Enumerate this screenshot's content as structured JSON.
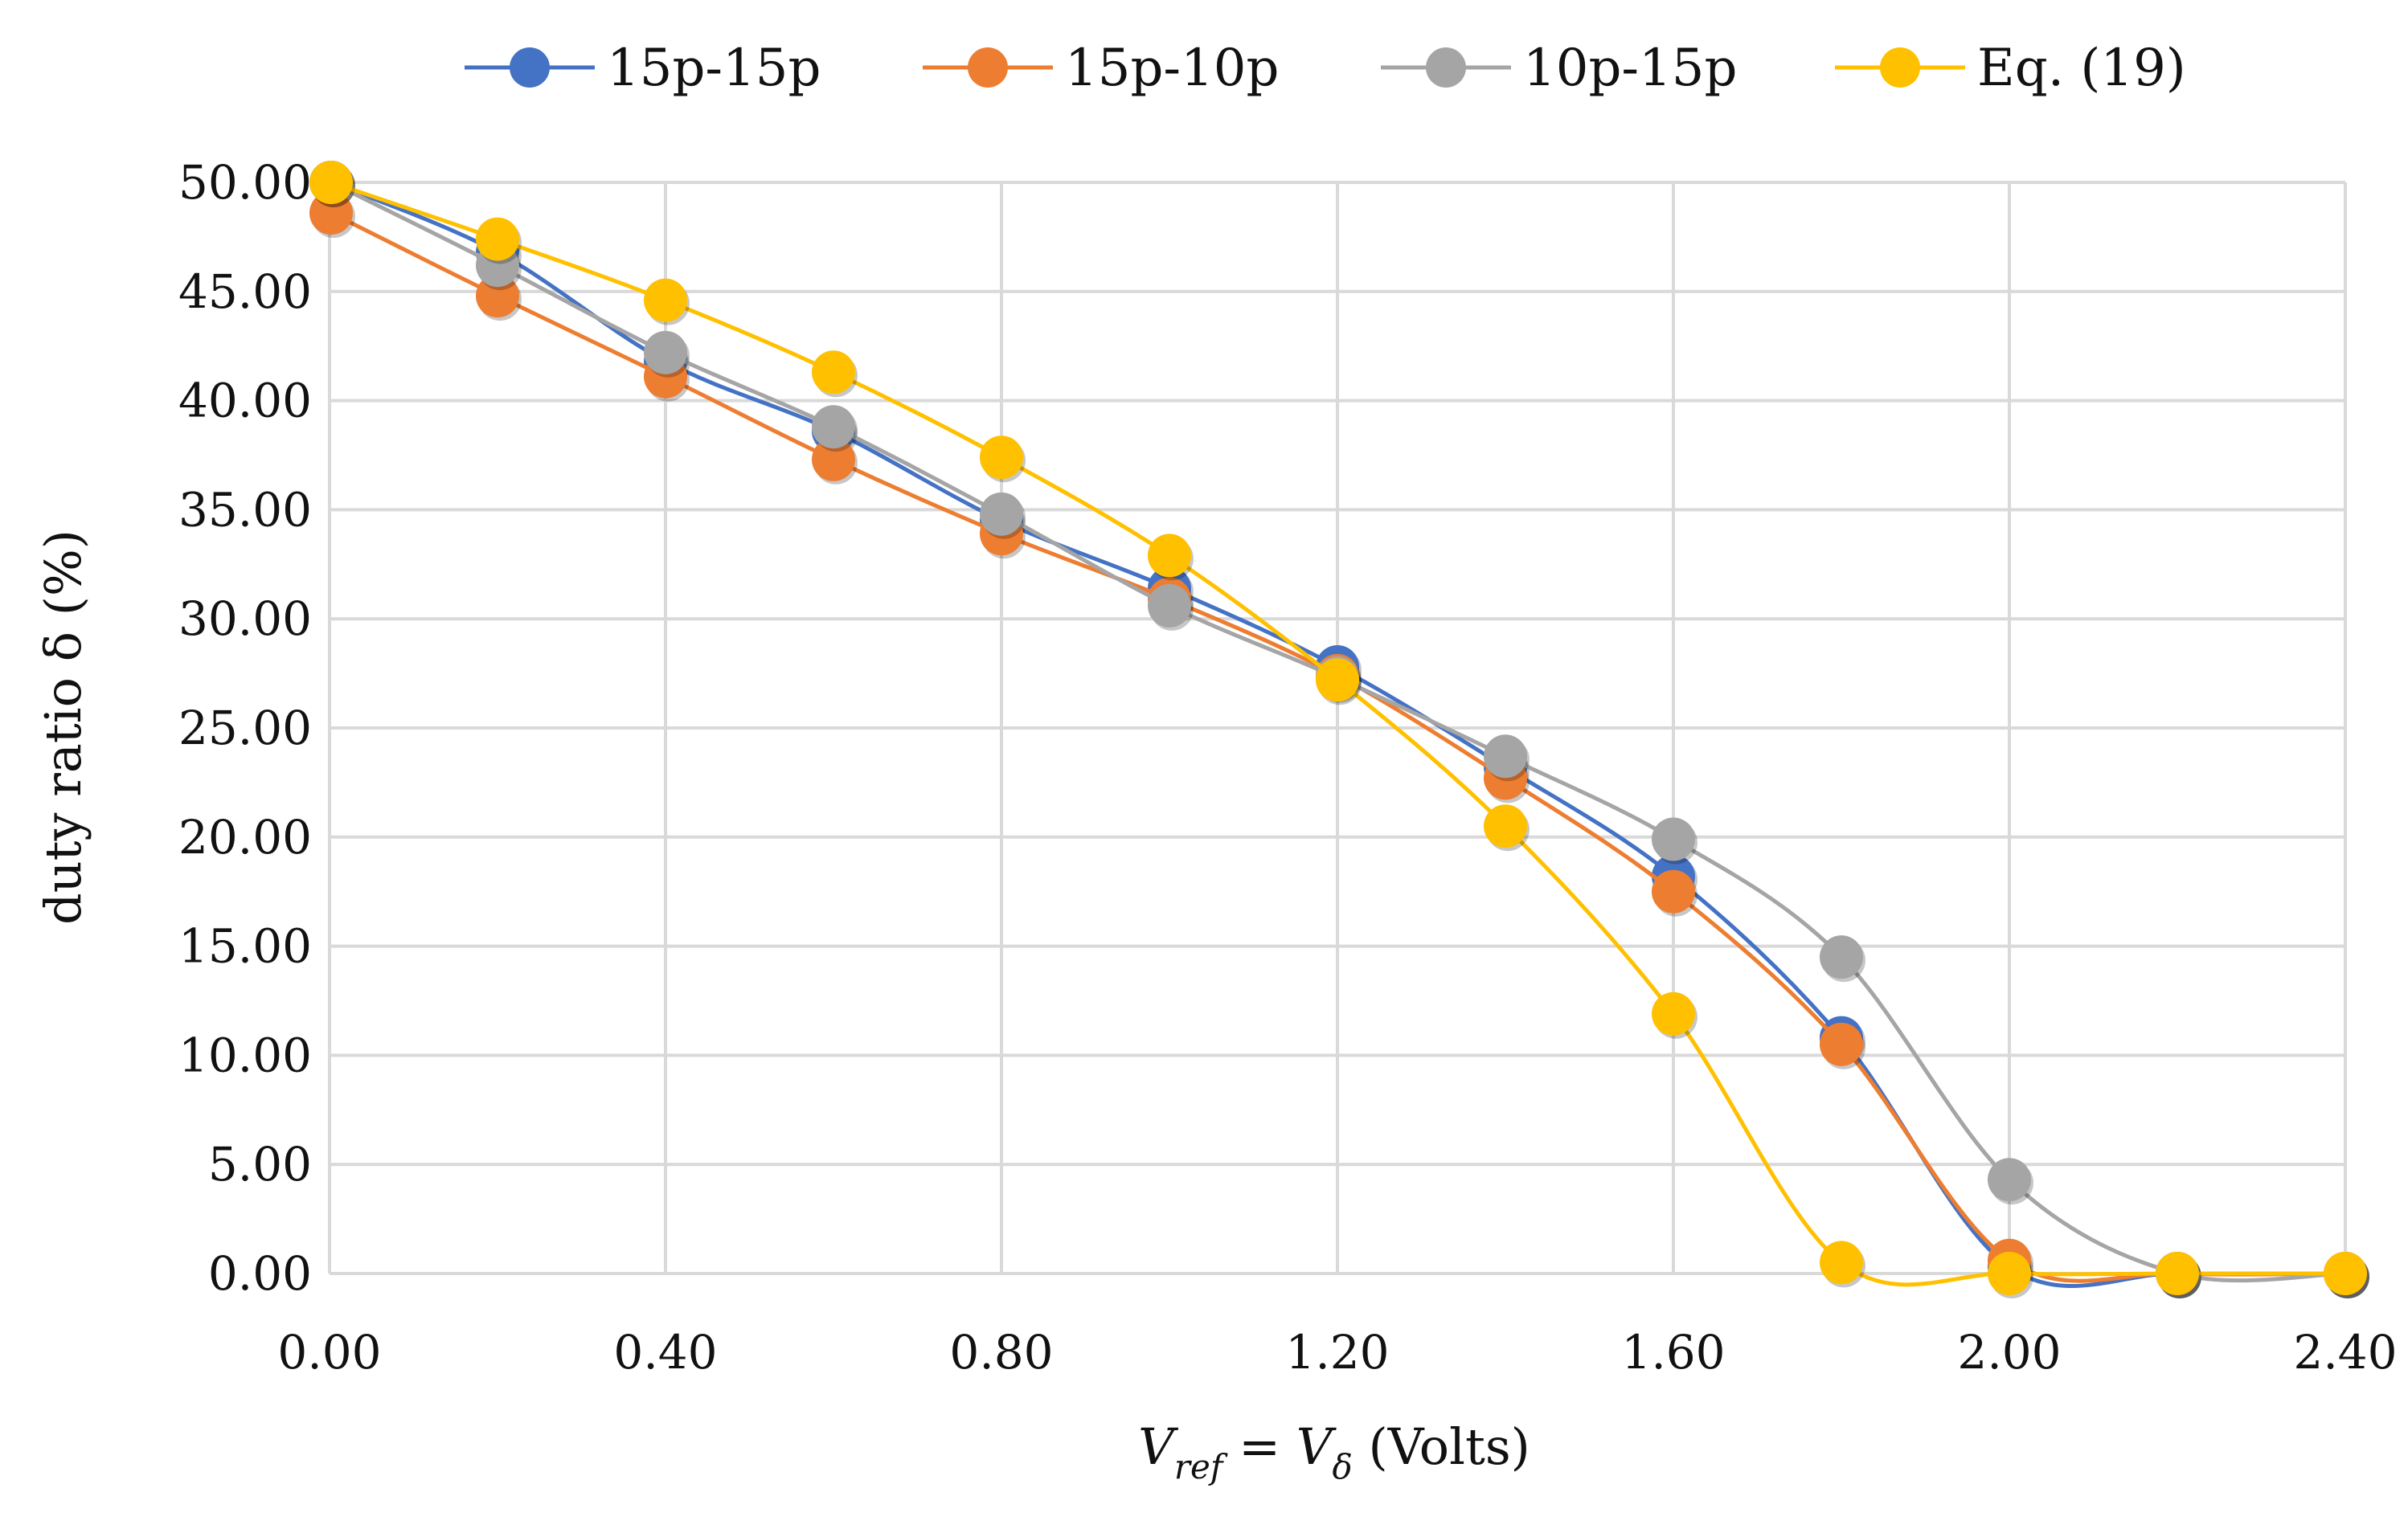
{
  "chart_data": {
    "type": "line",
    "title": "",
    "xlabel_main": "V",
    "xlabel_sub1": "ref",
    "xlabel_eq": " = V",
    "xlabel_sub2": "δ",
    "xlabel_units": " (Volts)",
    "ylabel": "duty ratio δ (%)",
    "xlim": [
      0,
      2.4
    ],
    "ylim": [
      0,
      50
    ],
    "x_ticks": [
      "0.00",
      "0.40",
      "0.80",
      "1.20",
      "1.60",
      "2.00",
      "2.40"
    ],
    "x_tick_values": [
      0,
      0.4,
      0.8,
      1.2,
      1.6,
      2.0,
      2.4
    ],
    "y_ticks": [
      "0.00",
      "5.00",
      "10.00",
      "15.00",
      "20.00",
      "25.00",
      "30.00",
      "35.00",
      "40.00",
      "45.00",
      "50.00"
    ],
    "y_tick_values": [
      0,
      5,
      10,
      15,
      20,
      25,
      30,
      35,
      40,
      45,
      50
    ],
    "x": [
      0,
      0.2,
      0.4,
      0.6,
      0.8,
      1.0,
      1.2,
      1.4,
      1.6,
      1.8,
      2.0,
      2.2,
      2.4
    ],
    "series": [
      {
        "name": "15p-15p",
        "color": "#4472c4",
        "values": [
          50.0,
          46.8,
          41.8,
          38.6,
          34.5,
          31.4,
          27.8,
          23.2,
          18.2,
          10.8,
          0.3,
          0.0,
          0.0
        ]
      },
      {
        "name": "15p-10p",
        "color": "#ed7d31",
        "values": [
          48.6,
          44.8,
          41.1,
          37.3,
          33.9,
          30.9,
          27.4,
          22.7,
          17.5,
          10.5,
          0.6,
          0.0,
          0.0
        ]
      },
      {
        "name": "10p-15p",
        "color": "#a5a5a5",
        "values": [
          50.0,
          46.2,
          42.2,
          38.8,
          34.8,
          30.6,
          27.3,
          23.7,
          19.9,
          14.5,
          4.3,
          0.0,
          0.0
        ]
      },
      {
        "name": "Eq. (19)",
        "color": "#ffc000",
        "values": [
          50.0,
          47.4,
          44.6,
          41.3,
          37.4,
          32.9,
          27.2,
          20.5,
          11.9,
          0.5,
          0.0,
          0.0,
          0.0
        ]
      }
    ],
    "grid": true,
    "legend_position": "top"
  }
}
